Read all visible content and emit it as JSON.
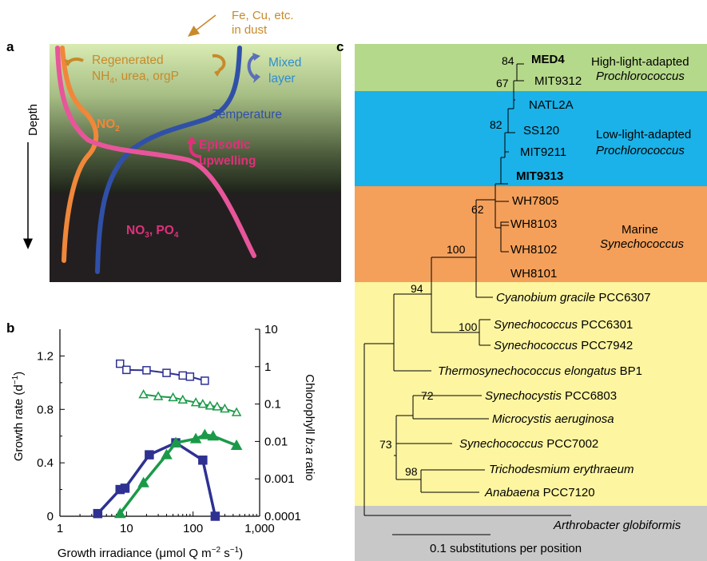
{
  "panel_labels": {
    "a": "a",
    "b": "b",
    "c": "c"
  },
  "panel_a": {
    "dust_line1": "Fe, Cu, etc.",
    "dust_line2": "in dust",
    "depth_label": "Depth",
    "regenerated_line1": "Regenerated",
    "regenerated_line2": "NH",
    "regenerated_sub": "4",
    "regenerated_rest": ", urea, orgP",
    "mixed_line1": "Mixed",
    "mixed_line2": "layer",
    "no2_main": "NO",
    "no2_sub": "2",
    "temperature": "Temperature",
    "episodic_line1": "Episodic",
    "episodic_line2": "upwelling",
    "no3_main": "NO",
    "no3_sub": "3",
    "po4_sep": ", PO",
    "po4_sub": "4",
    "colors": {
      "temperature": "#3050a8",
      "nitrate": "#e8559a",
      "nitrite": "#f0873a",
      "regenerated": "#c88a2a",
      "mixed": "#3a9ad9",
      "upwelling": "#e0307a"
    }
  },
  "panel_b": {
    "y_left_label": "Growth rate (d",
    "y_left_sup": "−1",
    "y_left_close": ")",
    "y_right_label": "Chlorophyll ",
    "y_right_italic": "b",
    "y_right_colon": ":",
    "y_right_italic2": "a",
    "y_right_rest": " ratio",
    "x_label": "Growth irradiance (μmol Q m",
    "x_sup1": "−2",
    "x_mid": " s",
    "x_sup2": "−1",
    "x_close": ")"
  },
  "chart_data": {
    "type": "scatter",
    "x_scale": "log",
    "xlim": [
      1,
      1000
    ],
    "x_ticks": [
      "1",
      "10",
      "100",
      "1,000"
    ],
    "ylim_left": [
      0,
      1.4
    ],
    "y_left_ticks": [
      "0",
      "0.4",
      "0.8",
      "1.2"
    ],
    "y_right_scale": "log",
    "ylim_right": [
      0.0001,
      10
    ],
    "y_right_ticks": [
      "0.0001",
      "0.001",
      "0.01",
      "0.1",
      "1",
      "10"
    ],
    "series": [
      {
        "axis": "left",
        "marker": "filled-square",
        "color": "#2e3192",
        "x": [
          3.7,
          8,
          9.5,
          22,
          55,
          140,
          215
        ],
        "y": [
          0.02,
          0.2,
          0.21,
          0.46,
          0.55,
          0.42,
          0.0
        ]
      },
      {
        "axis": "left",
        "marker": "filled-triangle",
        "color": "#1a9a48",
        "x": [
          8,
          18,
          40,
          55,
          110,
          150,
          200,
          450
        ],
        "y": [
          0.02,
          0.25,
          0.46,
          0.55,
          0.58,
          0.61,
          0.6,
          0.53
        ]
      },
      {
        "axis": "right",
        "marker": "open-square",
        "color": "#2e3192",
        "x": [
          8,
          10,
          20,
          40,
          70,
          90,
          150
        ],
        "y": [
          1.2,
          0.82,
          0.8,
          0.68,
          0.58,
          0.54,
          0.42
        ]
      },
      {
        "axis": "right",
        "marker": "open-triangle",
        "color": "#1a9a48",
        "x": [
          18,
          30,
          50,
          70,
          110,
          140,
          180,
          230,
          300,
          450
        ],
        "y": [
          0.18,
          0.16,
          0.15,
          0.13,
          0.11,
          0.1,
          0.09,
          0.085,
          0.075,
          0.06
        ]
      }
    ]
  },
  "panel_c": {
    "groups": {
      "high": {
        "line1": "High-light-adapted",
        "line2": "Prochlorococcus",
        "color": "#b5d98a"
      },
      "low": {
        "line1": "Low-light-adapted",
        "line2": "Prochlorococcus",
        "color": "#1ab2e8"
      },
      "marine": {
        "line1": "Marine",
        "line2": "Synechococcus",
        "color": "#f4a05a"
      },
      "other": {
        "color": "#fdf5a0"
      },
      "outgroup": {
        "color": "#c8c8c8"
      }
    },
    "taxa": {
      "med4": "MED4",
      "mit9312": "MIT9312",
      "natl2a": "NATL2A",
      "ss120": "SS120",
      "mit9211": "MIT9211",
      "mit9313": "MIT9313",
      "wh7805": "WH7805",
      "wh8103": "WH8103",
      "wh8102": "WH8102",
      "wh8101": "WH8101",
      "cyano_genus": "Cyanobium gracile",
      "cyano_strain": " PCC6307",
      "syn6301_genus": "Synechococcus",
      "syn6301_strain": " PCC6301",
      "syn7942_genus": "Synechococcus",
      "syn7942_strain": " PCC7942",
      "thermo_genus": "Thermosynechococcus elongatus",
      "thermo_strain": " BP1",
      "synechocystis_genus": "Synechocystis",
      "synechocystis_strain": " PCC6803",
      "microcystis": "Microcystis aeruginosa",
      "syn7002_genus": "Synechococcus",
      "syn7002_strain": " PCC7002",
      "tricho": "Trichodesmium erythraeum",
      "anabaena_genus": "Anabaena",
      "anabaena_strain": " PCC7120",
      "arthro": "Arthrobacter globiformis"
    },
    "bootstrap": {
      "b84": "84",
      "b67": "67",
      "b82": "82",
      "b62": "62",
      "b100a": "100",
      "b94": "94",
      "b100b": "100",
      "b72": "72",
      "b73": "73",
      "b98": "98"
    },
    "scale_label": "0.1 substitutions per position"
  }
}
